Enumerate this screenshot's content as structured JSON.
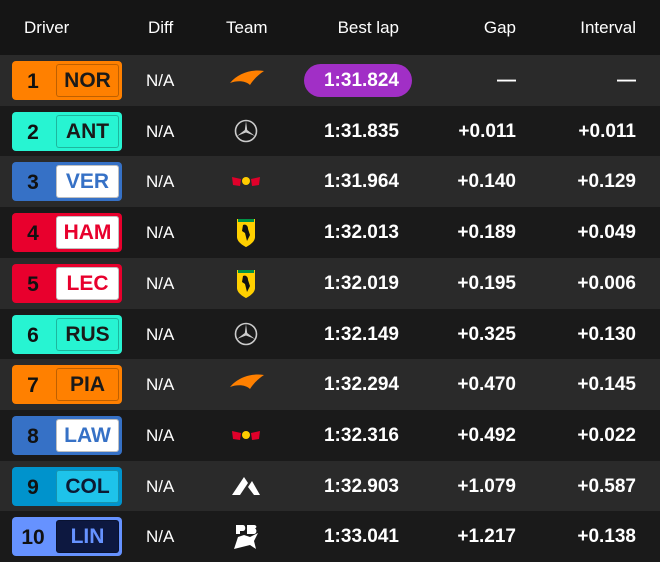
{
  "header": [
    "Driver",
    "Diff",
    "Team",
    "Best lap",
    "Gap",
    "Interval"
  ],
  "rows": [
    {
      "position": 1,
      "driver": "NOR",
      "diff": "N/A",
      "best_lap": "1:31.824",
      "gap": "—",
      "interval": "—",
      "color": "#ff8000",
      "code_bg": "#ff8000",
      "code_text": "#1a1a1a"
    },
    {
      "position": 2,
      "driver": "ANT",
      "diff": "N/A",
      "best_lap": "1:31.835",
      "gap": "+0.011",
      "interval": "+0.011",
      "color": "#27f4d2",
      "code_bg": "#27f4d2",
      "code_text": "#1a1a1a"
    },
    {
      "position": 3,
      "driver": "VER",
      "diff": "N/A",
      "best_lap": "1:31.964",
      "gap": "+0.140",
      "interval": "+0.129",
      "color": "#3671c6",
      "code_bg": "#ffffff",
      "code_text": "#3671c6"
    },
    {
      "position": 4,
      "driver": "HAM",
      "diff": "N/A",
      "best_lap": "1:32.013",
      "gap": "+0.189",
      "interval": "+0.049",
      "color": "#e8002d",
      "code_bg": "#ffffff",
      "code_text": "#e8002d"
    },
    {
      "position": 5,
      "driver": "LEC",
      "diff": "N/A",
      "best_lap": "1:32.019",
      "gap": "+0.195",
      "interval": "+0.006",
      "color": "#e8002d",
      "code_bg": "#ffffff",
      "code_text": "#e8002d"
    },
    {
      "position": 6,
      "driver": "RUS",
      "diff": "N/A",
      "best_lap": "1:32.149",
      "gap": "+0.325",
      "interval": "+0.130",
      "color": "#27f4d2",
      "code_bg": "#27f4d2",
      "code_text": "#1a1a1a"
    },
    {
      "position": 7,
      "driver": "PIA",
      "diff": "N/A",
      "best_lap": "1:32.294",
      "gap": "+0.470",
      "interval": "+0.145",
      "color": "#ff8000",
      "code_bg": "#ff8000",
      "code_text": "#1a1a1a"
    },
    {
      "position": 8,
      "driver": "LAW",
      "diff": "N/A",
      "best_lap": "1:32.316",
      "gap": "+0.492",
      "interval": "+0.022",
      "color": "#3671c6",
      "code_bg": "#ffffff",
      "code_text": "#3671c6"
    },
    {
      "position": 9,
      "driver": "COL",
      "diff": "N/A",
      "best_lap": "1:32.903",
      "gap": "+1.079",
      "interval": "+0.587",
      "color": "#0093cc",
      "code_bg": "#1ec3ea",
      "code_text": "#0c1a33"
    },
    {
      "position": 10,
      "driver": "LIN",
      "diff": "N/A",
      "best_lap": "1:33.041",
      "gap": "+1.217",
      "interval": "+0.138",
      "color": "#6692ff",
      "code_bg": "#0d1840",
      "code_text": "#6692ff"
    }
  ]
}
